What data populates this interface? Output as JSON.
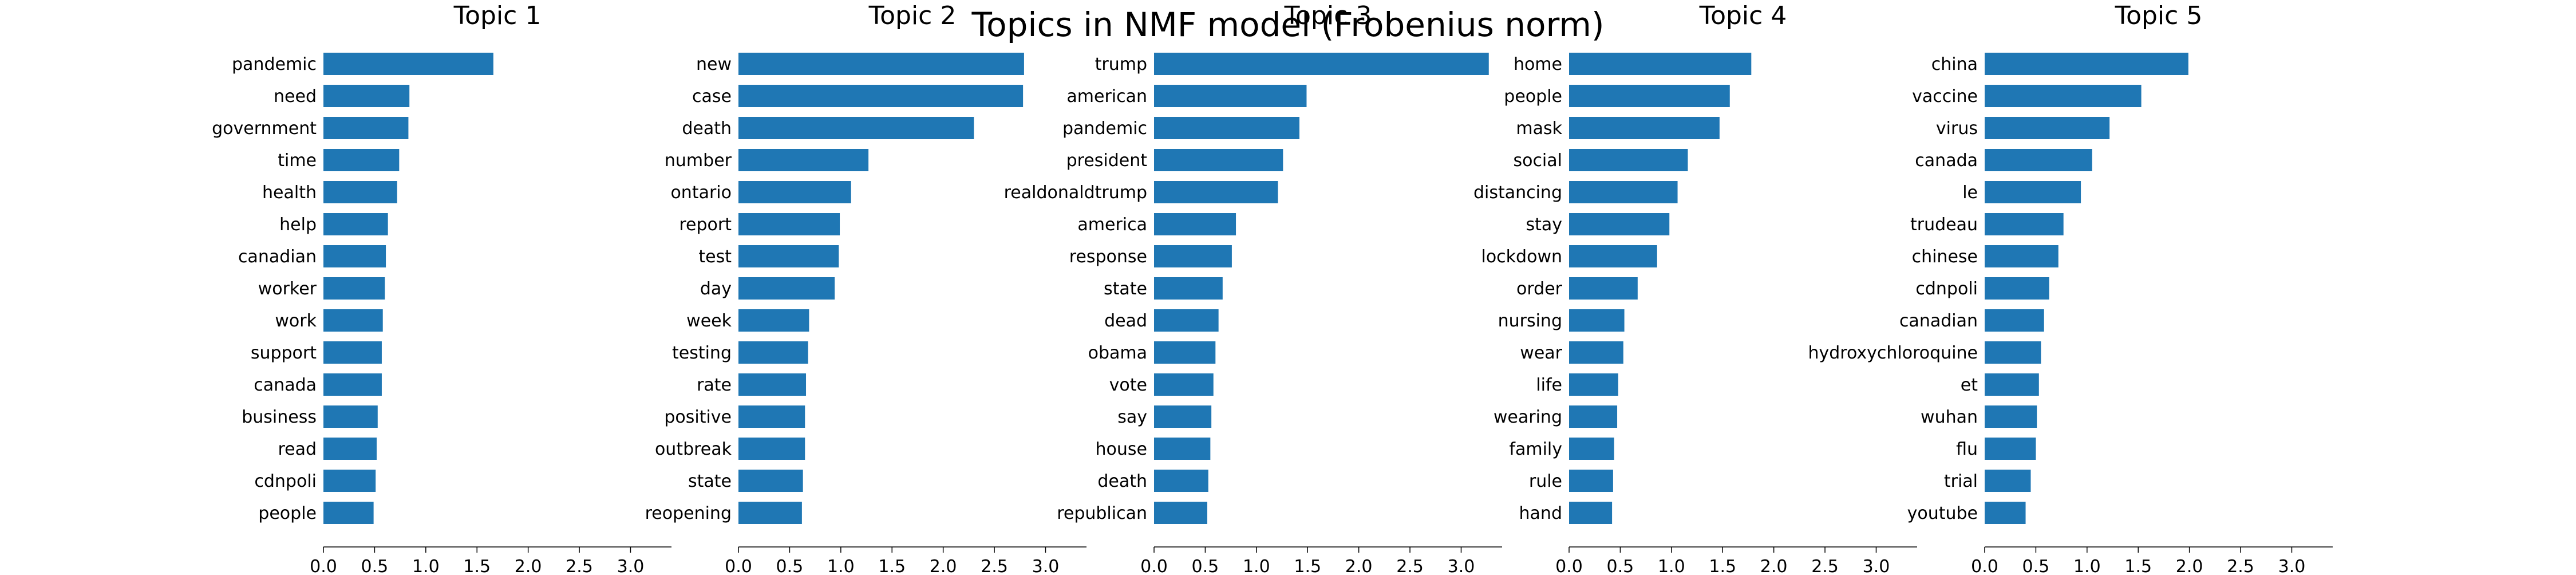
{
  "suptitle": "Topics in NMF model (Frobenius norm)",
  "chart_data": [
    {
      "type": "bar",
      "orientation": "horizontal",
      "title": "Topic 1",
      "xlim": [
        0,
        3.4
      ],
      "xticks": [
        "0.0",
        "0.5",
        "1.0",
        "1.5",
        "2.0",
        "2.5",
        "3.0"
      ],
      "categories": [
        "pandemic",
        "need",
        "government",
        "time",
        "health",
        "help",
        "canadian",
        "worker",
        "work",
        "support",
        "canada",
        "business",
        "read",
        "cdnpoli",
        "people"
      ],
      "values": [
        1.66,
        0.84,
        0.83,
        0.74,
        0.72,
        0.63,
        0.61,
        0.6,
        0.58,
        0.57,
        0.57,
        0.53,
        0.52,
        0.51,
        0.49
      ],
      "color": "#1f77b4"
    },
    {
      "type": "bar",
      "orientation": "horizontal",
      "title": "Topic 2",
      "xlim": [
        0,
        3.4
      ],
      "xticks": [
        "0.0",
        "0.5",
        "1.0",
        "1.5",
        "2.0",
        "2.5",
        "3.0"
      ],
      "categories": [
        "new",
        "case",
        "death",
        "number",
        "ontario",
        "report",
        "test",
        "day",
        "week",
        "testing",
        "rate",
        "positive",
        "outbreak",
        "state",
        "reopening"
      ],
      "values": [
        2.79,
        2.78,
        2.3,
        1.27,
        1.1,
        0.99,
        0.98,
        0.94,
        0.69,
        0.68,
        0.66,
        0.65,
        0.65,
        0.63,
        0.62
      ],
      "color": "#1f77b4"
    },
    {
      "type": "bar",
      "orientation": "horizontal",
      "title": "Topic 3",
      "xlim": [
        0,
        3.4
      ],
      "xticks": [
        "0.0",
        "0.5",
        "1.0",
        "1.5",
        "2.0",
        "2.5",
        "3.0"
      ],
      "categories": [
        "trump",
        "american",
        "pandemic",
        "president",
        "realdonaldtrump",
        "america",
        "response",
        "state",
        "dead",
        "obama",
        "vote",
        "say",
        "house",
        "death",
        "republican"
      ],
      "values": [
        3.27,
        1.49,
        1.42,
        1.26,
        1.21,
        0.8,
        0.76,
        0.67,
        0.63,
        0.6,
        0.58,
        0.56,
        0.55,
        0.53,
        0.52
      ],
      "color": "#1f77b4"
    },
    {
      "type": "bar",
      "orientation": "horizontal",
      "title": "Topic 4",
      "xlim": [
        0,
        3.4
      ],
      "xticks": [
        "0.0",
        "0.5",
        "1.0",
        "1.5",
        "2.0",
        "2.5",
        "3.0"
      ],
      "categories": [
        "home",
        "people",
        "mask",
        "social",
        "distancing",
        "stay",
        "lockdown",
        "order",
        "nursing",
        "wear",
        "life",
        "wearing",
        "family",
        "rule",
        "hand"
      ],
      "values": [
        1.78,
        1.57,
        1.47,
        1.16,
        1.06,
        0.98,
        0.86,
        0.67,
        0.54,
        0.53,
        0.48,
        0.47,
        0.44,
        0.43,
        0.42
      ],
      "color": "#1f77b4"
    },
    {
      "type": "bar",
      "orientation": "horizontal",
      "title": "Topic 5",
      "xlim": [
        0,
        3.4
      ],
      "xticks": [
        "0.0",
        "0.5",
        "1.0",
        "1.5",
        "2.0",
        "2.5",
        "3.0"
      ],
      "categories": [
        "china",
        "vaccine",
        "virus",
        "canada",
        "le",
        "trudeau",
        "chinese",
        "cdnpoli",
        "canadian",
        "hydroxychloroquine",
        "et",
        "wuhan",
        "flu",
        "trial",
        "youtube"
      ],
      "values": [
        1.99,
        1.53,
        1.22,
        1.05,
        0.94,
        0.77,
        0.72,
        0.63,
        0.58,
        0.55,
        0.53,
        0.51,
        0.5,
        0.45,
        0.4
      ],
      "color": "#1f77b4"
    }
  ]
}
